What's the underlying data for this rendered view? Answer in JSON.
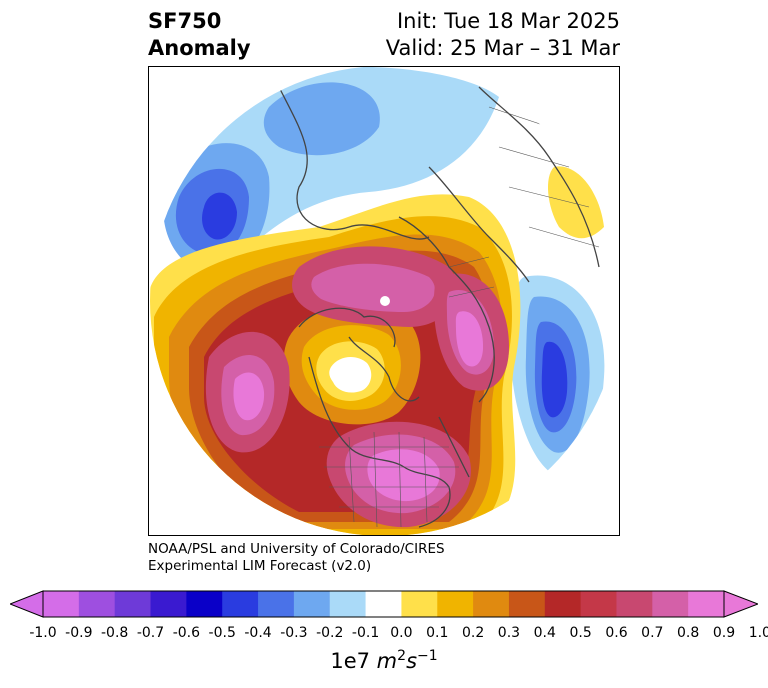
{
  "title": {
    "variable": "SF750",
    "quantity": "Anomaly",
    "init": "Init: Tue 18 Mar 2025",
    "valid": "Valid: 25 Mar – 31 Mar"
  },
  "credit": {
    "line1": "NOAA/PSL and University of Colorado/CIRES",
    "line2": "Experimental LIM Forecast (v2.0)"
  },
  "colorbar": {
    "ticks": [
      "-1.0",
      "-0.9",
      "-0.8",
      "-0.7",
      "-0.6",
      "-0.5",
      "-0.4",
      "-0.3",
      "-0.2",
      "-0.1",
      "0.0",
      "0.1",
      "0.2",
      "0.3",
      "0.4",
      "0.5",
      "0.6",
      "0.7",
      "0.8",
      "0.9",
      "1.0"
    ],
    "colors": [
      "#d46de8",
      "#9e4fe0",
      "#6e3ad8",
      "#3a1ad0",
      "#0a00c8",
      "#2a3ce0",
      "#4a72e8",
      "#6ea8f0",
      "#aadaf8",
      "#ffffff",
      "#ffe04a",
      "#f0b400",
      "#e08a10",
      "#c85618",
      "#b42828",
      "#c43848",
      "#c84870",
      "#d460a8",
      "#e878d8"
    ],
    "units_prefix": "1e7 ",
    "units_m": "m",
    "units_s": "s",
    "units_m_exp": "2",
    "units_s_exp": "−1"
  }
}
